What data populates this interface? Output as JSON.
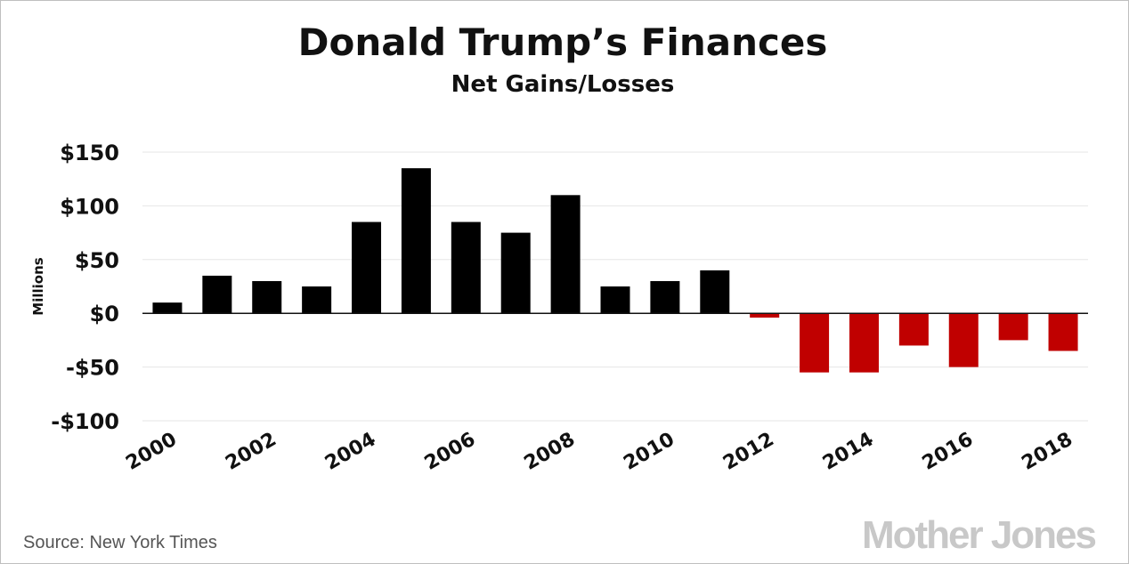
{
  "chart_data": {
    "type": "bar",
    "title": "Donald Trump’s Finances",
    "subtitle": "Net Gains/Losses",
    "ylabel": "Millions",
    "xlabel": "",
    "ylim": [
      -100,
      150
    ],
    "yticks": [
      150,
      100,
      50,
      0,
      -50,
      -100
    ],
    "ytick_labels": [
      "$150",
      "$100",
      "$50",
      "$0",
      "-$50",
      "-$100"
    ],
    "xtick_labels": [
      "2000",
      "2002",
      "2004",
      "2006",
      "2008",
      "2010",
      "2012",
      "2014",
      "2016",
      "2018"
    ],
    "categories": [
      "2000",
      "2001",
      "2002",
      "2003",
      "2004",
      "2005",
      "2006",
      "2007",
      "2008",
      "2009",
      "2010",
      "2011",
      "2012",
      "2013",
      "2014",
      "2015",
      "2016",
      "2017",
      "2018"
    ],
    "values": [
      10,
      35,
      30,
      25,
      85,
      135,
      85,
      75,
      110,
      25,
      30,
      40,
      -4,
      -55,
      -55,
      -30,
      -50,
      -25,
      -35
    ],
    "colors": {
      "positive": "#000000",
      "negative": "#c00000"
    },
    "grid": true
  },
  "source": "Source:  New York Times",
  "logo": "Mother Jones"
}
